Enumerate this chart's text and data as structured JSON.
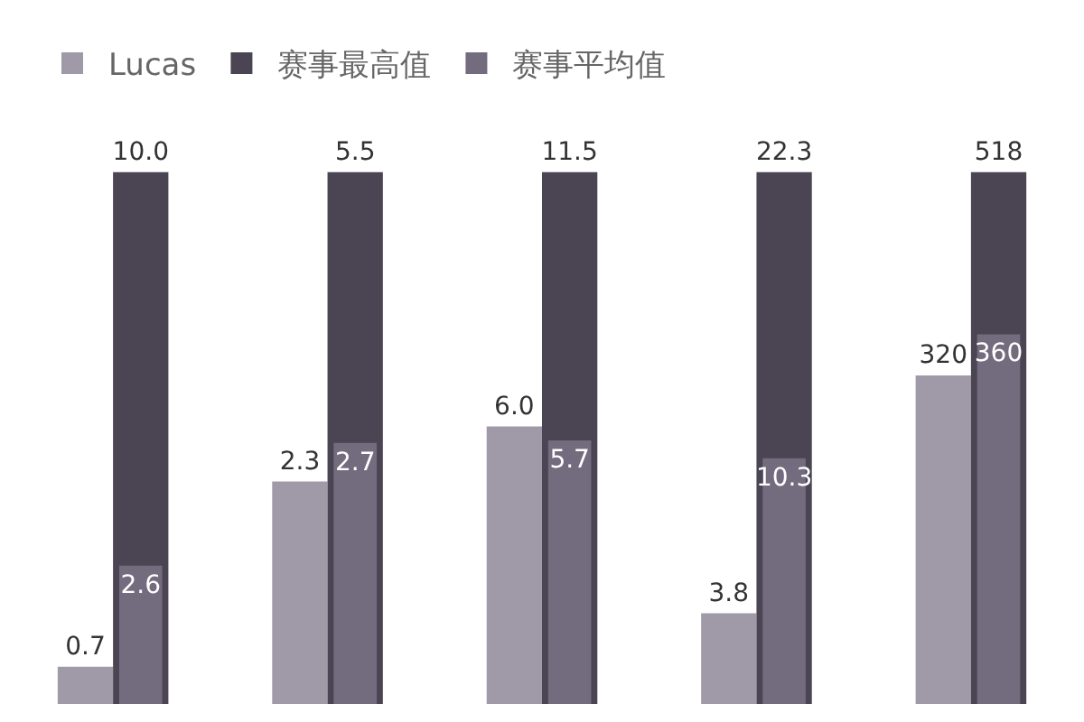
{
  "chart_data": [
    {
      "type": "bar",
      "categories": [
        null
      ],
      "legend": "top right",
      "series": [
        {
          "name": "Lucas",
          "color": "#a09aa8",
          "values": [
            0.7
          ],
          "value_labels": [
            "0.7"
          ]
        },
        {
          "name": "赛事最高值",
          "color": "#4a4453",
          "values": [
            10.0
          ],
          "value_labels": [
            "10.0"
          ]
        },
        {
          "name": "赛事平均值",
          "color": "#736b7e",
          "values": [
            2.6
          ],
          "value_labels": [
            "2.6"
          ]
        }
      ]
    },
    {
      "type": "bar",
      "categories": [
        null
      ],
      "series": [
        {
          "color": "#a09aa8",
          "values": [
            2.3
          ],
          "value_labels": [
            "2.3"
          ]
        },
        {
          "color": "#4a4453",
          "values": [
            5.5
          ],
          "value_labels": [
            "5.5"
          ]
        },
        {
          "color": "#736b7e",
          "values": [
            2.7
          ],
          "value_labels": [
            "2.7"
          ]
        }
      ]
    },
    {
      "type": "bar",
      "categories": [
        null
      ],
      "series": [
        {
          "color": "#a09aa8",
          "values": [
            6.0
          ],
          "value_labels": [
            "6.0"
          ]
        },
        {
          "color": "#4a4453",
          "values": [
            11.5
          ],
          "value_labels": [
            "11.5"
          ]
        },
        {
          "color": "#736b7e",
          "values": [
            5.7
          ],
          "value_labels": [
            "5.7"
          ]
        }
      ]
    },
    {
      "type": "bar",
      "categories": [
        null
      ],
      "series": [
        {
          "color": "#a09aa8",
          "values": [
            3.8
          ],
          "value_labels": [
            "3.8"
          ]
        },
        {
          "color": "#4a4453",
          "values": [
            22.3
          ],
          "value_labels": [
            "22.3"
          ]
        },
        {
          "color": "#736b7e",
          "values": [
            10.3
          ],
          "value_labels": [
            "10.3"
          ]
        }
      ]
    },
    {
      "type": "bar",
      "categories": [
        null
      ],
      "series": [
        {
          "color": "#a09aa8",
          "values": [
            320
          ],
          "value_labels": [
            "320"
          ]
        },
        {
          "color": "#4a4453",
          "values": [
            518
          ],
          "value_labels": [
            "518"
          ]
        },
        {
          "color": "#736b7e",
          "values": [
            360
          ],
          "value_labels": [
            "360"
          ]
        }
      ]
    }
  ]
}
